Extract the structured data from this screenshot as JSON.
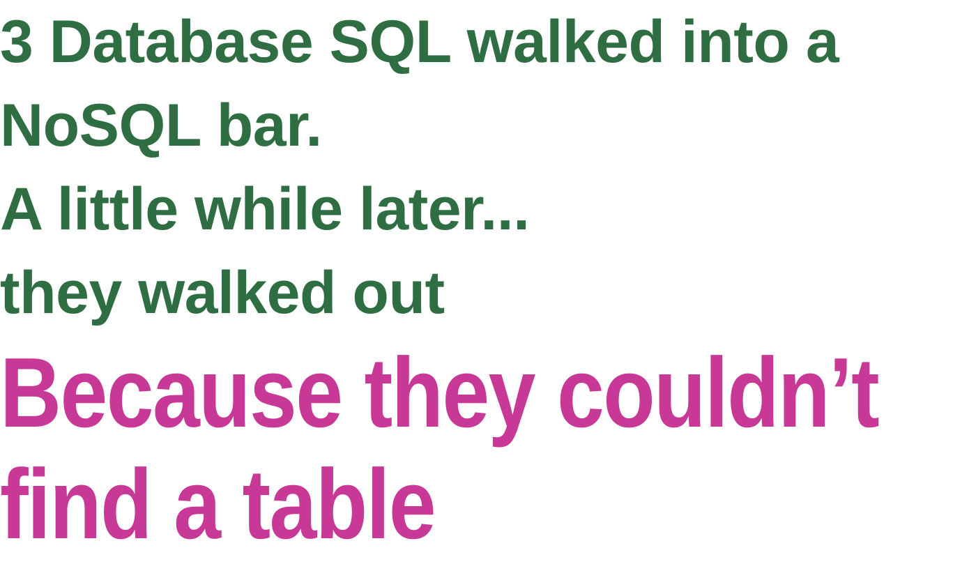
{
  "joke": {
    "setup_lines": [
      "3 Database SQL walked into a",
      "NoSQL bar.",
      "A little while later...",
      "they walked out"
    ],
    "punchline_lines": [
      "Because they couldn’t",
      "find a table"
    ]
  },
  "colors": {
    "setup_text": "#2e6e42",
    "punchline_text": "#c83896",
    "background": "#ffffff"
  }
}
